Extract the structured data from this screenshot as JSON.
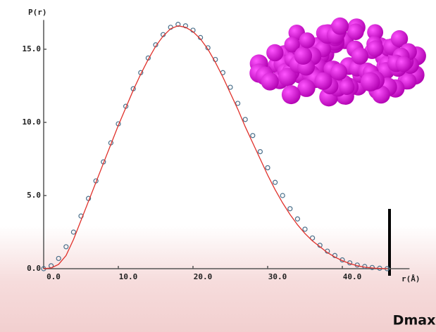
{
  "chart_data": {
    "type": "line",
    "y_label": "P(r)",
    "x_label": "r(Å)",
    "annotation": "Dmax",
    "x": [
      0,
      1,
      2,
      3,
      4,
      5,
      6,
      7,
      8,
      9,
      10,
      11,
      12,
      13,
      14,
      15,
      16,
      17,
      18,
      19,
      20,
      21,
      22,
      23,
      24,
      25,
      26,
      27,
      28,
      29,
      30,
      31,
      32,
      33,
      34,
      35,
      36,
      37,
      38,
      39,
      40,
      41,
      42,
      43,
      44,
      45,
      46
    ],
    "series": [
      {
        "color": "#4a6f8a",
        "marker": "circle",
        "values": [
          0,
          0.2,
          0.7,
          1.5,
          2.5,
          3.6,
          4.8,
          6.0,
          7.3,
          8.6,
          9.9,
          11.1,
          12.3,
          13.4,
          14.4,
          15.3,
          16.0,
          16.5,
          16.7,
          16.6,
          16.3,
          15.8,
          15.1,
          14.3,
          13.4,
          12.4,
          11.3,
          10.2,
          9.1,
          8.0,
          6.9,
          5.9,
          5.0,
          4.1,
          3.4,
          2.7,
          2.1,
          1.6,
          1.2,
          0.9,
          0.6,
          0.4,
          0.25,
          0.15,
          0.08,
          0.03,
          0
        ]
      },
      {
        "color": "#e0302a",
        "marker": "none",
        "values": [
          0,
          0.05,
          0.3,
          0.9,
          2.0,
          3.3,
          4.6,
          5.9,
          7.2,
          8.5,
          9.8,
          11.0,
          12.2,
          13.3,
          14.3,
          15.2,
          15.9,
          16.4,
          16.6,
          16.5,
          16.2,
          15.7,
          15.0,
          14.1,
          13.1,
          12.0,
          10.9,
          9.7,
          8.6,
          7.5,
          6.4,
          5.4,
          4.5,
          3.7,
          3.0,
          2.4,
          1.9,
          1.5,
          1.1,
          0.8,
          0.55,
          0.35,
          0.2,
          0.1,
          0.05,
          0.02,
          0
        ]
      }
    ],
    "xlim": [
      0,
      49
    ],
    "ylim": [
      0,
      17
    ],
    "xticks": [
      {
        "value": 0,
        "label": "0.0"
      },
      {
        "value": 10,
        "label": "10.0"
      },
      {
        "value": 20,
        "label": "20.0"
      },
      {
        "value": 30,
        "label": "30.0"
      },
      {
        "value": 40,
        "label": "40.0"
      }
    ],
    "yticks": [
      {
        "value": 0,
        "label": "0.0"
      },
      {
        "value": 5,
        "label": "5.0"
      },
      {
        "value": 10,
        "label": "10.0"
      },
      {
        "value": 15,
        "label": "15.0"
      }
    ]
  }
}
